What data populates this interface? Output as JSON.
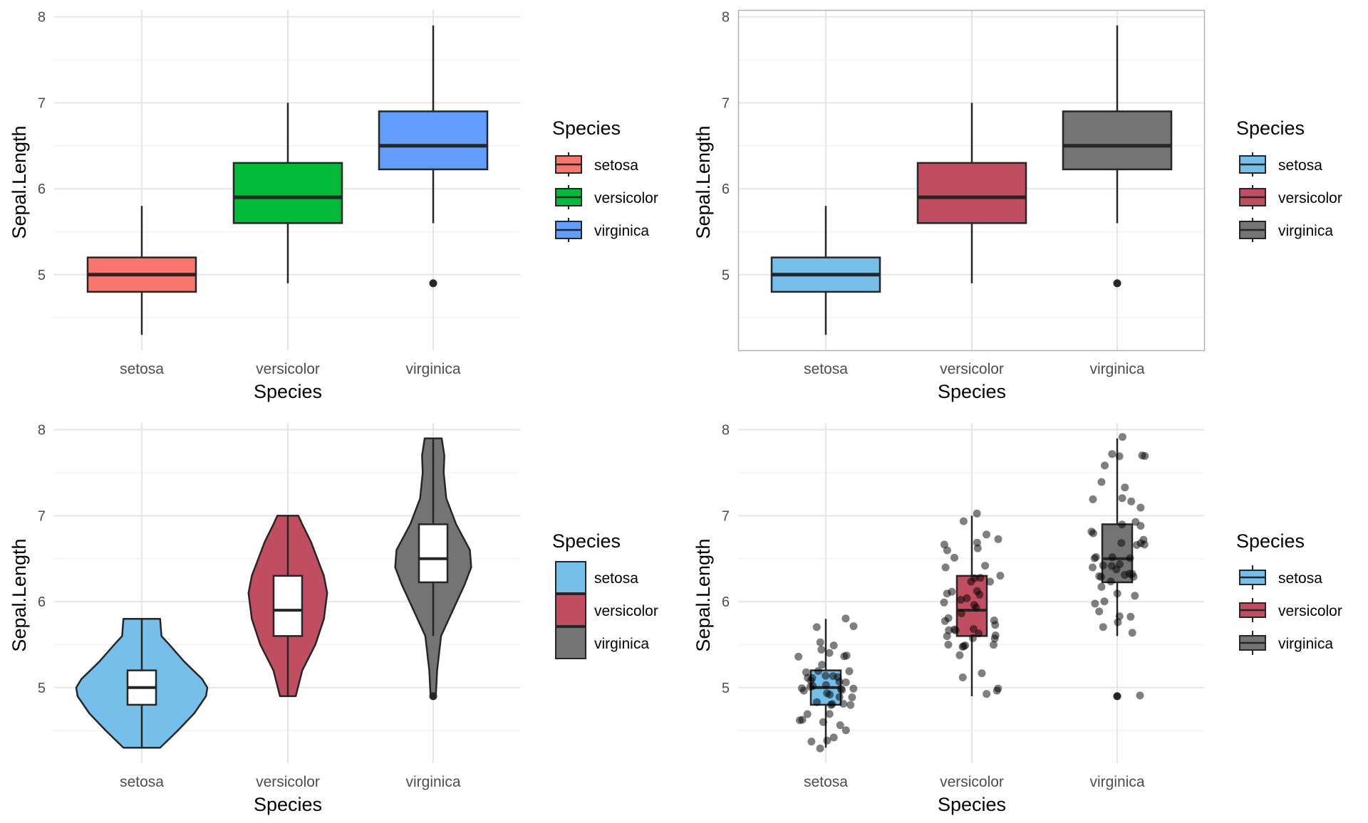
{
  "chart_data": [
    {
      "type": "box",
      "panel_border": false,
      "categories": [
        "setosa",
        "versicolor",
        "virginica"
      ],
      "fills": [
        "#F8766D",
        "#00BA38",
        "#619CFF"
      ],
      "stats": [
        {
          "min": 4.3,
          "q1": 4.8,
          "median": 5.0,
          "q3": 5.2,
          "max": 5.8,
          "outliers": []
        },
        {
          "min": 4.9,
          "q1": 5.6,
          "median": 5.9,
          "q3": 6.3,
          "max": 7.0,
          "outliers": []
        },
        {
          "min": 5.6,
          "q1": 6.225,
          "median": 6.5,
          "q3": 6.9,
          "max": 7.9,
          "outliers": [
            4.9
          ]
        }
      ],
      "xlabel": "Species",
      "ylabel": "Sepal.Length",
      "ylim": [
        4.12,
        8.08
      ],
      "yticks": [
        5,
        6,
        7,
        8
      ],
      "legend": {
        "title": "Species",
        "position": "right",
        "entries": [
          "setosa",
          "versicolor",
          "virginica"
        ]
      }
    },
    {
      "type": "box",
      "panel_border": true,
      "categories": [
        "setosa",
        "versicolor",
        "virginica"
      ],
      "fills": [
        "#75bfea",
        "#c14d60",
        "#747474"
      ],
      "stats": [
        {
          "min": 4.3,
          "q1": 4.8,
          "median": 5.0,
          "q3": 5.2,
          "max": 5.8,
          "outliers": []
        },
        {
          "min": 4.9,
          "q1": 5.6,
          "median": 5.9,
          "q3": 6.3,
          "max": 7.0,
          "outliers": []
        },
        {
          "min": 5.6,
          "q1": 6.225,
          "median": 6.5,
          "q3": 6.9,
          "max": 7.9,
          "outliers": [
            4.9
          ]
        }
      ],
      "xlabel": "Species",
      "ylabel": "Sepal.Length",
      "ylim": [
        4.12,
        8.08
      ],
      "yticks": [
        5,
        6,
        7,
        8
      ],
      "legend": {
        "title": "Species",
        "position": "right",
        "entries": [
          "setosa",
          "versicolor",
          "virginica"
        ]
      }
    },
    {
      "type": "violin",
      "panel_border": false,
      "categories": [
        "setosa",
        "versicolor",
        "virginica"
      ],
      "fills": [
        "#75bfea",
        "#c14d60",
        "#747474"
      ],
      "density": [
        {
          "y": [
            4.3,
            4.5,
            4.7,
            4.9,
            5.0,
            5.1,
            5.3,
            5.5,
            5.6,
            5.8
          ],
          "w": [
            0.28,
            0.55,
            0.8,
            0.98,
            1.0,
            0.92,
            0.65,
            0.42,
            0.3,
            0.28
          ]
        },
        {
          "y": [
            4.9,
            5.2,
            5.5,
            5.8,
            6.1,
            6.3,
            6.5,
            6.7,
            6.9,
            7.0
          ],
          "w": [
            0.12,
            0.22,
            0.42,
            0.55,
            0.6,
            0.55,
            0.45,
            0.35,
            0.22,
            0.16
          ]
        },
        {
          "y": [
            4.9,
            5.2,
            5.6,
            5.9,
            6.2,
            6.4,
            6.6,
            6.9,
            7.2,
            7.5,
            7.7,
            7.9
          ],
          "w": [
            0.04,
            0.06,
            0.12,
            0.3,
            0.48,
            0.58,
            0.56,
            0.35,
            0.2,
            0.16,
            0.17,
            0.13
          ]
        }
      ],
      "stats": [
        {
          "min": 4.3,
          "q1": 4.8,
          "median": 5.0,
          "q3": 5.2,
          "max": 5.8,
          "outliers": []
        },
        {
          "min": 4.9,
          "q1": 5.6,
          "median": 5.9,
          "q3": 6.3,
          "max": 7.0,
          "outliers": []
        },
        {
          "min": 5.6,
          "q1": 6.225,
          "median": 6.5,
          "q3": 6.9,
          "max": 7.9,
          "outliers": [
            4.9
          ]
        }
      ],
      "xlabel": "Species",
      "ylabel": "Sepal.Length",
      "ylim": [
        4.12,
        8.08
      ],
      "yticks": [
        5,
        6,
        7,
        8
      ],
      "legend": {
        "title": "Species",
        "position": "right",
        "entries": [
          "setosa",
          "versicolor",
          "virginica"
        ]
      }
    },
    {
      "type": "box_jitter",
      "panel_border": false,
      "categories": [
        "setosa",
        "versicolor",
        "virginica"
      ],
      "fills": [
        "#75bfea",
        "#c14d60",
        "#747474"
      ],
      "stats": [
        {
          "min": 4.3,
          "q1": 4.8,
          "median": 5.0,
          "q3": 5.2,
          "max": 5.8,
          "outliers": []
        },
        {
          "min": 4.9,
          "q1": 5.6,
          "median": 5.9,
          "q3": 6.3,
          "max": 7.0,
          "outliers": []
        },
        {
          "min": 5.6,
          "q1": 6.225,
          "median": 6.5,
          "q3": 6.9,
          "max": 7.9,
          "outliers": [
            4.9
          ]
        }
      ],
      "points": [
        {
          "values": [
            5.1,
            4.9,
            4.7,
            4.6,
            5.0,
            5.4,
            4.6,
            5.0,
            4.4,
            4.9,
            5.4,
            4.8,
            4.8,
            4.3,
            5.8,
            5.7,
            5.4,
            5.1,
            5.7,
            5.1,
            5.4,
            5.1,
            4.6,
            5.1,
            4.8,
            5.0,
            5.0,
            5.2,
            5.2,
            4.7,
            4.8,
            5.4,
            5.2,
            5.5,
            4.9,
            5.0,
            5.5,
            4.9,
            4.4,
            5.1,
            5.0,
            4.5,
            4.4,
            5.0,
            5.1,
            4.8,
            5.1,
            4.6,
            5.3,
            5.0
          ]
        },
        {
          "values": [
            7.0,
            6.4,
            6.9,
            5.5,
            6.5,
            5.7,
            6.3,
            4.9,
            6.6,
            5.2,
            5.0,
            5.9,
            6.0,
            6.1,
            5.6,
            6.7,
            5.6,
            5.8,
            6.2,
            5.6,
            5.9,
            6.1,
            6.3,
            6.1,
            6.4,
            6.6,
            6.8,
            6.7,
            6.0,
            5.7,
            5.5,
            5.5,
            5.8,
            6.0,
            5.4,
            6.0,
            6.7,
            6.3,
            5.6,
            5.5,
            5.5,
            6.1,
            5.8,
            5.0,
            5.6,
            5.7,
            5.7,
            6.2,
            5.1,
            5.7
          ]
        },
        {
          "values": [
            6.3,
            5.8,
            7.1,
            6.3,
            6.5,
            7.6,
            4.9,
            7.3,
            6.7,
            7.2,
            6.5,
            6.4,
            6.8,
            5.7,
            5.8,
            6.4,
            6.5,
            7.7,
            7.7,
            6.0,
            6.9,
            5.6,
            7.7,
            6.3,
            6.7,
            7.2,
            6.2,
            6.1,
            6.4,
            7.2,
            7.4,
            7.9,
            6.4,
            6.3,
            6.1,
            7.7,
            6.3,
            6.4,
            6.0,
            6.9,
            6.7,
            6.9,
            5.8,
            6.8,
            6.7,
            6.7,
            6.3,
            6.5,
            6.2,
            5.9
          ]
        }
      ],
      "xlabel": "Species",
      "ylabel": "Sepal.Length",
      "ylim": [
        4.12,
        8.08
      ],
      "yticks": [
        5,
        6,
        7,
        8
      ],
      "legend": {
        "title": "Species",
        "position": "right",
        "entries": [
          "setosa",
          "versicolor",
          "virginica"
        ]
      }
    }
  ]
}
